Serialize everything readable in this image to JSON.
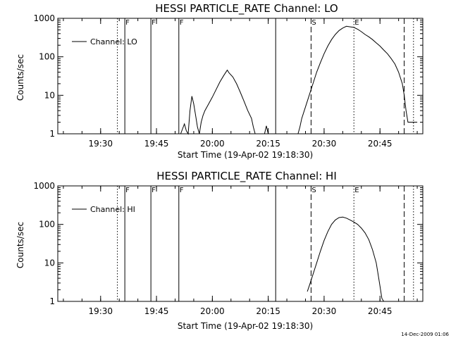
{
  "footer_timestamp": "14-Dec-2009 01:06",
  "chart_data": [
    {
      "type": "line",
      "title": "HESSI PARTICLE_RATE Channel: LO",
      "xlabel": "Start Time (19-Apr-02 19:18:30)",
      "ylabel": "Counts/sec",
      "yscale": "log",
      "ylim": [
        1,
        1000
      ],
      "xlim": [
        "19:18:30",
        "20:56:30"
      ],
      "x_ticks": [
        "19:30",
        "19:45",
        "20:00",
        "20:15",
        "20:30",
        "20:45"
      ],
      "y_ticks": [
        "1",
        "10",
        "100",
        "1000"
      ],
      "legend": {
        "label": "Channel: LO",
        "placement": "top-left"
      },
      "markers": [
        {
          "label": "F",
          "time": "19:36:30",
          "style": "solid"
        },
        {
          "label": "F",
          "time": "19:43:30",
          "style": "solid"
        },
        {
          "label": "F",
          "time": "19:51:00",
          "style": "solid"
        },
        {
          "label": "",
          "time": "20:17:00",
          "style": "solid"
        },
        {
          "label": "S",
          "time": "20:26:30",
          "style": "dashed"
        },
        {
          "label": "E",
          "time": "20:38:00",
          "style": "dotted"
        },
        {
          "label": "",
          "time": "20:51:30",
          "style": "dashed"
        },
        {
          "label": "",
          "time": "19:34:30",
          "style": "dotted"
        },
        {
          "label": "",
          "time": "20:54:00",
          "style": "dotted"
        }
      ],
      "series": [
        {
          "name": "Channel: LO",
          "segments": [
            [
              [
                "19:51:30",
                1
              ],
              [
                "19:52:30",
                1.8
              ],
              [
                "19:53:00",
                1.2
              ],
              [
                "19:53:30",
                1
              ],
              [
                "19:54:00",
                4
              ],
              [
                "19:54:30",
                9.5
              ],
              [
                "19:55:00",
                6
              ],
              [
                "19:55:30",
                3
              ],
              [
                "19:56:00",
                1.5
              ],
              [
                "19:56:30",
                1
              ],
              [
                "19:57:00",
                2
              ],
              [
                "19:57:30",
                3
              ],
              [
                "19:58:00",
                4
              ],
              [
                "19:59:00",
                6
              ],
              [
                "20:00:00",
                9
              ],
              [
                "20:01:00",
                14
              ],
              [
                "20:02:00",
                22
              ],
              [
                "20:03:00",
                32
              ],
              [
                "20:04:00",
                45
              ],
              [
                "20:04:30",
                38
              ],
              [
                "20:05:30",
                30
              ],
              [
                "20:06:30",
                20
              ],
              [
                "20:07:30",
                12
              ],
              [
                "20:08:30",
                7
              ],
              [
                "20:09:30",
                4
              ],
              [
                "20:10:30",
                2.5
              ],
              [
                "20:11:00",
                1.5
              ],
              [
                "20:11:30",
                1
              ]
            ],
            [
              [
                "20:14:00",
                1
              ],
              [
                "20:14:30",
                1.6
              ],
              [
                "20:15:00",
                1
              ]
            ],
            [
              [
                "20:23:00",
                1
              ],
              [
                "20:23:30",
                1.5
              ],
              [
                "20:24:00",
                2.5
              ],
              [
                "20:25:00",
                5
              ],
              [
                "20:26:00",
                10
              ],
              [
                "20:27:00",
                20
              ],
              [
                "20:28:00",
                40
              ],
              [
                "20:29:00",
                70
              ],
              [
                "20:30:00",
                120
              ],
              [
                "20:31:00",
                190
              ],
              [
                "20:32:00",
                280
              ],
              [
                "20:33:00",
                380
              ],
              [
                "20:34:00",
                480
              ],
              [
                "20:35:00",
                560
              ],
              [
                "20:36:00",
                620
              ],
              [
                "20:37:00",
                600
              ],
              [
                "20:38:00",
                580
              ],
              [
                "20:39:00",
                520
              ],
              [
                "20:40:00",
                450
              ],
              [
                "20:41:00",
                380
              ],
              [
                "20:42:00",
                330
              ],
              [
                "20:43:00",
                280
              ],
              [
                "20:44:00",
                230
              ],
              [
                "20:45:00",
                190
              ],
              [
                "20:46:00",
                150
              ],
              [
                "20:47:00",
                120
              ],
              [
                "20:48:00",
                90
              ],
              [
                "20:49:00",
                65
              ],
              [
                "20:50:00",
                40
              ],
              [
                "20:51:00",
                20
              ],
              [
                "20:51:30",
                10
              ],
              [
                "20:52:00",
                4
              ],
              [
                "20:52:30",
                2
              ],
              [
                "20:55:00",
                2
              ]
            ]
          ]
        }
      ]
    },
    {
      "type": "line",
      "title": "HESSI PARTICLE_RATE Channel: HI",
      "xlabel": "Start Time (19-Apr-02 19:18:30)",
      "ylabel": "Counts/sec",
      "yscale": "log",
      "ylim": [
        1,
        1000
      ],
      "xlim": [
        "19:18:30",
        "20:56:30"
      ],
      "x_ticks": [
        "19:30",
        "19:45",
        "20:00",
        "20:15",
        "20:30",
        "20:45"
      ],
      "y_ticks": [
        "1",
        "10",
        "100",
        "1000"
      ],
      "legend": {
        "label": "Channel: HI",
        "placement": "top-left"
      },
      "markers": [
        {
          "label": "F",
          "time": "19:36:30",
          "style": "solid"
        },
        {
          "label": "F",
          "time": "19:43:30",
          "style": "solid"
        },
        {
          "label": "F",
          "time": "19:51:00",
          "style": "solid"
        },
        {
          "label": "",
          "time": "20:17:00",
          "style": "solid"
        },
        {
          "label": "S",
          "time": "20:26:30",
          "style": "dashed"
        },
        {
          "label": "E",
          "time": "20:38:00",
          "style": "dotted"
        },
        {
          "label": "",
          "time": "20:51:30",
          "style": "dashed"
        },
        {
          "label": "",
          "time": "19:34:30",
          "style": "dotted"
        },
        {
          "label": "",
          "time": "20:54:00",
          "style": "dotted"
        }
      ],
      "series": [
        {
          "name": "Channel: HI",
          "segments": [
            [
              [
                "20:25:30",
                1.8
              ],
              [
                "20:26:00",
                2.5
              ],
              [
                "20:27:00",
                5
              ],
              [
                "20:28:00",
                10
              ],
              [
                "20:29:00",
                20
              ],
              [
                "20:30:00",
                38
              ],
              [
                "20:31:00",
                65
              ],
              [
                "20:32:00",
                100
              ],
              [
                "20:33:00",
                130
              ],
              [
                "20:34:00",
                150
              ],
              [
                "20:35:00",
                155
              ],
              [
                "20:36:00",
                145
              ],
              [
                "20:37:00",
                130
              ],
              [
                "20:38:00",
                115
              ],
              [
                "20:39:00",
                100
              ],
              [
                "20:40:00",
                80
              ],
              [
                "20:41:00",
                60
              ],
              [
                "20:42:00",
                40
              ],
              [
                "20:43:00",
                22
              ],
              [
                "20:44:00",
                10
              ],
              [
                "20:44:30",
                5
              ],
              [
                "20:45:00",
                2.5
              ],
              [
                "20:45:30",
                1.2
              ],
              [
                "20:46:00",
                1
              ]
            ]
          ]
        }
      ]
    }
  ]
}
